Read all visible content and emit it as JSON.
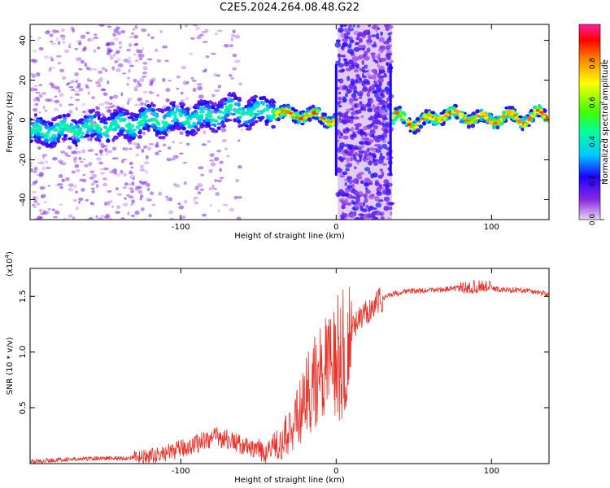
{
  "title": "C2E5.2024.264.08.48.G22",
  "chart_data": [
    {
      "type": "heatmap",
      "xlabel": "Height of straight line (km)",
      "ylabel": "Frequency (Hz)",
      "xlim": [
        -197,
        137
      ],
      "ylim": [
        -50,
        48
      ],
      "xticks": [
        -100,
        0,
        100
      ],
      "xtick_labels": [
        "-100",
        "0",
        "100"
      ],
      "yticks": [
        -40,
        -20,
        0,
        20,
        40
      ],
      "ytick_labels": [
        "-40",
        "-20",
        "0",
        "20",
        "40"
      ],
      "colorbar": {
        "label": "Normalized spectral amplitude",
        "range": [
          0,
          1
        ],
        "ticks": [
          0.0,
          0.2,
          0.4,
          0.6,
          0.8
        ],
        "tick_labels": [
          "0.0",
          "0.2",
          "0.4",
          "0.6",
          "0.8"
        ]
      },
      "shaded_band_x": [
        1,
        36
      ],
      "ridge": {
        "x": [
          -197,
          -190,
          -180,
          -170,
          -160,
          -150,
          -140,
          -130,
          -120,
          -110,
          -100,
          -90,
          -80,
          -70,
          -60,
          -50,
          -40,
          -30,
          -20,
          -10,
          0,
          10,
          20,
          30,
          36,
          40,
          50,
          60,
          70,
          80,
          90,
          100,
          110,
          120,
          130,
          137
        ],
        "y": [
          -6,
          -6,
          -5,
          -5,
          -4,
          -4,
          -3,
          -2,
          0,
          0,
          1,
          1,
          2,
          5,
          4,
          4,
          5,
          2,
          3,
          1,
          0,
          0,
          0,
          0,
          0,
          2,
          -2,
          0,
          3,
          2,
          1,
          0,
          2,
          0,
          3,
          1
        ]
      }
    },
    {
      "type": "line",
      "xlabel": "Height of straight line (km)",
      "ylabel": "SNR (10 * v/v)",
      "y_multiplier": "(x10",
      "y_multiplier_exp": "4",
      "y_multiplier_close": ")",
      "xlim": [
        -197,
        137
      ],
      "ylim": [
        0,
        1.75
      ],
      "xticks": [
        -100,
        0,
        100
      ],
      "xtick_labels": [
        "-100",
        "0",
        "100"
      ],
      "yticks": [
        0.5,
        1.0,
        1.5
      ],
      "ytick_labels": [
        "0.5",
        "1.0",
        "1.5"
      ],
      "color": "#e8322a",
      "series": [
        {
          "x": [
            -197,
            -185,
            -175,
            -165,
            -155,
            -145,
            -135,
            -125,
            -115,
            -105,
            -95,
            -85,
            -75,
            -65,
            -55,
            -45,
            -35,
            -25,
            -15,
            -5,
            5,
            15,
            25,
            35,
            45,
            55,
            65,
            75,
            85,
            95,
            105,
            115,
            125,
            137
          ],
          "y": [
            0.02,
            0.03,
            0.04,
            0.04,
            0.05,
            0.05,
            0.05,
            0.06,
            0.08,
            0.12,
            0.16,
            0.22,
            0.25,
            0.2,
            0.14,
            0.12,
            0.2,
            0.45,
            0.75,
            0.95,
            1.1,
            1.3,
            1.45,
            1.52,
            1.55,
            1.55,
            1.56,
            1.57,
            1.58,
            1.6,
            1.56,
            1.56,
            1.55,
            1.52
          ]
        }
      ]
    }
  ]
}
